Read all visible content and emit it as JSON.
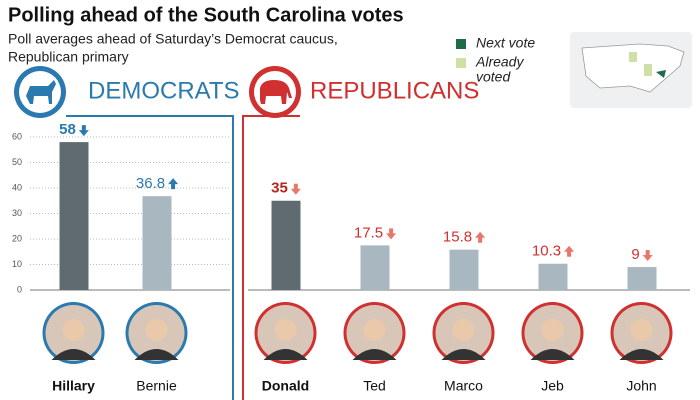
{
  "header": {
    "title": "Polling ahead of the South Carolina votes",
    "subtitle": [
      "Poll averages ahead of Saturday’s Democrat caucus,",
      "Republican primary"
    ]
  },
  "legend": [
    {
      "name": "Next vote",
      "color": "#1f6b4a"
    },
    {
      "name": [
        "Already",
        "voted"
      ],
      "color": "#cfe0a6"
    }
  ],
  "chart_data": [
    {
      "type": "bar",
      "title": "DEMOCRATS",
      "accent": "#2a7ab0",
      "categories": [
        "Hillary",
        "Bernie"
      ],
      "values": [
        58,
        36.8
      ],
      "trends": [
        "down",
        "up"
      ],
      "colors": [
        "#5f6b70",
        "#a9b8c0"
      ],
      "ylim": [
        0,
        60
      ],
      "yticks": [
        0,
        10,
        20,
        30,
        40,
        50,
        60
      ],
      "grid": true
    },
    {
      "type": "bar",
      "title": "REPUBLICANS",
      "accent": "#d0302f",
      "categories": [
        "Donald",
        "Ted",
        "Marco",
        "Jeb",
        "John"
      ],
      "values": [
        35,
        17.5,
        15.8,
        10.3,
        9
      ],
      "trends": [
        "down",
        "down",
        "up",
        "up",
        "down"
      ],
      "colors": [
        "#5f6b70",
        "#a9b8c0",
        "#a9b8c0",
        "#a9b8c0",
        "#a9b8c0"
      ],
      "ylim": [
        0,
        60
      ],
      "grid": false
    }
  ]
}
